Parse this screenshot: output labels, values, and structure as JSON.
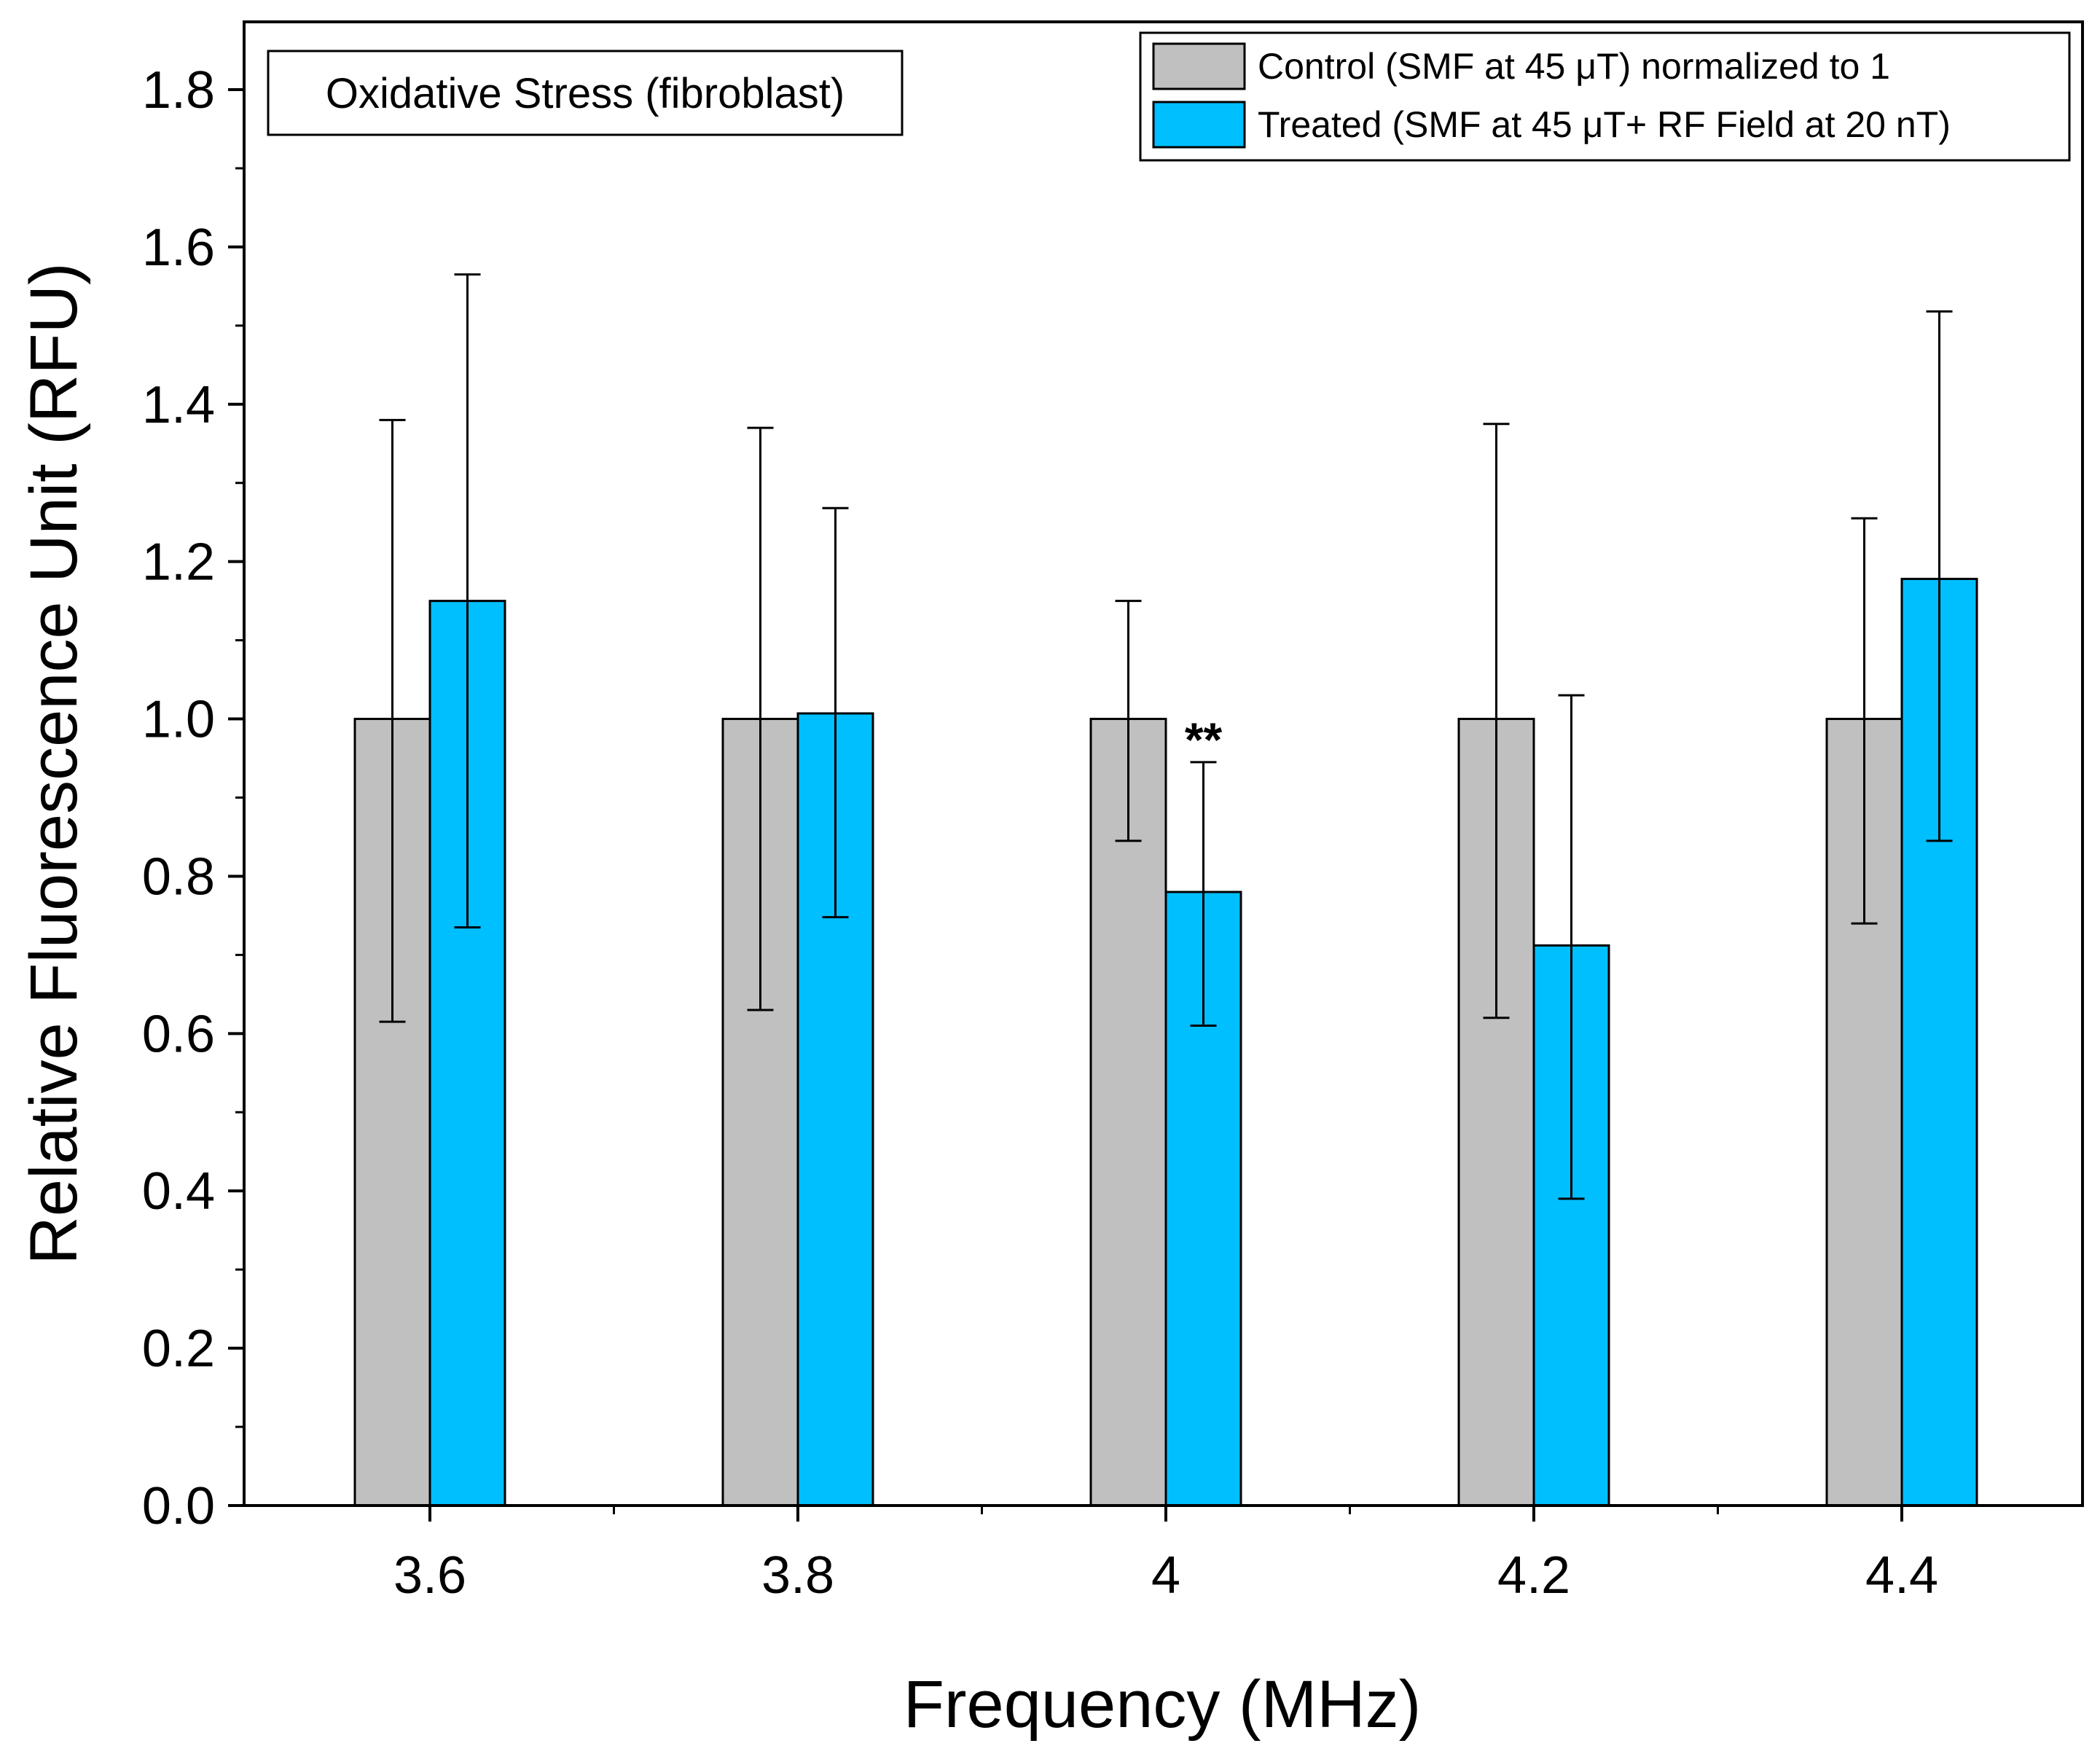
{
  "chart_data": {
    "type": "bar",
    "title": "",
    "inset_label": "Oxidative Stress (fibroblast)",
    "xlabel": "Frequency (MHz)",
    "ylabel": "Relative Fluorescence Unit (RFU)",
    "categories": [
      "3.6",
      "3.8",
      "4",
      "4.2",
      "4.4"
    ],
    "ylim": [
      0,
      1.8
    ],
    "yticks": [
      "0.0",
      "0.2",
      "0.4",
      "0.6",
      "0.8",
      "1.0",
      "1.2",
      "1.4",
      "1.6",
      "1.8"
    ],
    "grid": false,
    "legend_position": "top-right",
    "series": [
      {
        "name": "Control  (SMF at 45 μT) normalized to 1",
        "color": "#c0c0c0",
        "values": [
          1.0,
          1.0,
          1.0,
          1.0,
          1.0
        ],
        "error_high": [
          1.38,
          1.37,
          1.15,
          1.375,
          1.255
        ],
        "error_low": [
          0.615,
          0.63,
          0.845,
          0.62,
          0.74
        ]
      },
      {
        "name": "Treated (SMF at 45 μT+ RF Field at 20 nT)",
        "color": "#00bfff",
        "values": [
          1.15,
          1.007,
          0.78,
          0.712,
          1.178
        ],
        "error_high": [
          1.565,
          1.268,
          0.945,
          1.03,
          1.518
        ],
        "error_low": [
          0.735,
          0.748,
          0.61,
          0.39,
          0.845
        ]
      }
    ],
    "annotations": [
      {
        "text": "**",
        "category": "4",
        "series": 1
      }
    ]
  }
}
